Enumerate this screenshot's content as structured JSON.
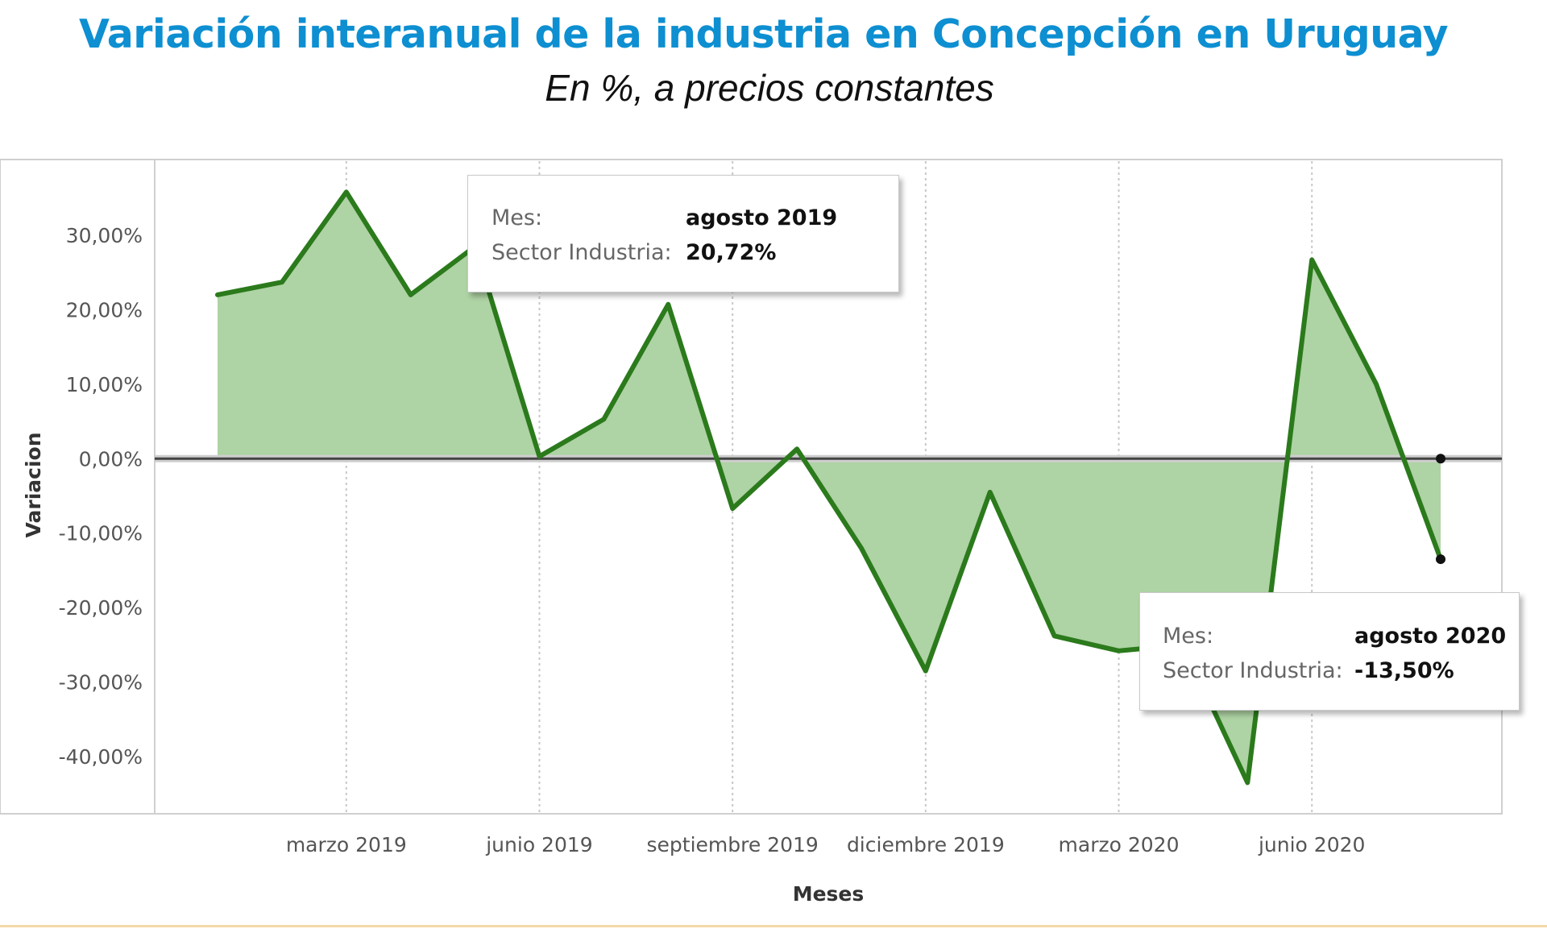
{
  "title": "Variación interanual de la industria en Concepción en Uruguay",
  "subtitle": "En %, a precios constantes",
  "chart_data": {
    "type": "area",
    "x": [
      "enero 2019",
      "febrero 2019",
      "marzo 2019",
      "abril 2019",
      "mayo 2019",
      "junio 2019",
      "julio 2019",
      "agosto 2019",
      "septiembre 2019",
      "octubre 2019",
      "noviembre 2019",
      "diciembre 2019",
      "enero 2020",
      "febrero 2020",
      "marzo 2020",
      "abril 2020",
      "mayo 2020",
      "junio 2020",
      "julio 2020",
      "agosto 2020"
    ],
    "series": [
      {
        "name": "Sector Industria",
        "values": [
          22.0,
          23.7,
          35.8,
          22.0,
          28.5,
          0.3,
          5.3,
          20.72,
          -6.7,
          1.3,
          -12.0,
          -28.5,
          -4.5,
          -23.8,
          -25.8,
          -25.0,
          -43.5,
          26.7,
          10.0,
          -13.5
        ]
      }
    ],
    "xlabel": "Meses",
    "ylabel": "Variacion",
    "ylim": [
      -48,
      40
    ],
    "yticks": [
      30,
      20,
      10,
      0,
      -10,
      -20,
      -30,
      -40
    ],
    "ytick_labels": [
      "30,00%",
      "20,00%",
      "10,00%",
      "0,00%",
      "-10,00%",
      "-20,00%",
      "-30,00%",
      "-40,00%"
    ],
    "xtick_labels": [
      "marzo 2019",
      "junio 2019",
      "septiembre 2019",
      "diciembre 2019",
      "marzo 2020",
      "junio 2020"
    ],
    "xtick_index": [
      2,
      5,
      8,
      11,
      14,
      17
    ],
    "grid": "vertical dotted",
    "line_color": "#2b7a1c",
    "fill_color": "#aed3a4",
    "zero_line_color": "#444444"
  },
  "tooltips": [
    {
      "mes_label": "Mes:",
      "mes_value": "agosto 2019",
      "sector_label": "Sector Industria:",
      "sector_value": "20,72%"
    },
    {
      "mes_label": "Mes:",
      "mes_value": "agosto 2020",
      "sector_label": "Sector Industria:",
      "sector_value": "-13,50%"
    }
  ]
}
